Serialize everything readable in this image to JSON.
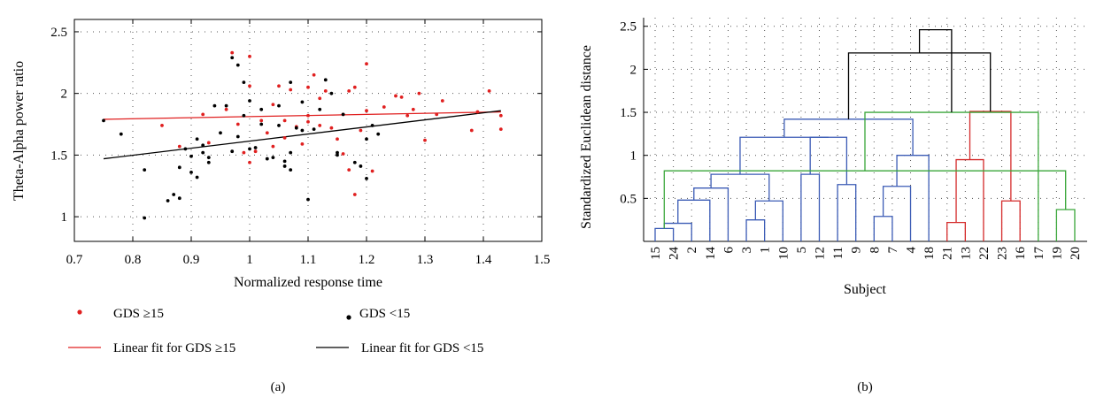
{
  "chart_data": [
    {
      "type": "scatter",
      "panel_label": "(a)",
      "xlabel": "Normalized response time",
      "ylabel": "Theta-Alpha power ratio",
      "xlim": [
        0.7,
        1.5
      ],
      "ylim": [
        0.8,
        2.6
      ],
      "xticks": [
        "0.7",
        "0.8",
        "0.9",
        "1",
        "1.1",
        "1.2",
        "1.3",
        "1.4",
        "1.5"
      ],
      "yticks": [
        "1",
        "1.5",
        "2",
        "2.5"
      ],
      "grid": true,
      "legend_position": "bottom",
      "series": [
        {
          "name": "GDS ≥15",
          "color": "#e02020",
          "points": [
            [
              0.85,
              1.74
            ],
            [
              0.88,
              1.57
            ],
            [
              0.92,
              1.83
            ],
            [
              0.93,
              1.6
            ],
            [
              0.96,
              1.87
            ],
            [
              0.97,
              2.33
            ],
            [
              0.98,
              1.75
            ],
            [
              0.99,
              1.52
            ],
            [
              1.0,
              2.3
            ],
            [
              1.0,
              2.06
            ],
            [
              1.0,
              1.44
            ],
            [
              1.01,
              1.53
            ],
            [
              1.02,
              1.78
            ],
            [
              1.03,
              1.68
            ],
            [
              1.04,
              1.91
            ],
            [
              1.04,
              1.57
            ],
            [
              1.05,
              2.06
            ],
            [
              1.06,
              1.78
            ],
            [
              1.06,
              1.64
            ],
            [
              1.07,
              2.03
            ],
            [
              1.08,
              1.73
            ],
            [
              1.09,
              1.59
            ],
            [
              1.1,
              2.05
            ],
            [
              1.1,
              1.82
            ],
            [
              1.1,
              1.77
            ],
            [
              1.11,
              2.15
            ],
            [
              1.12,
              1.96
            ],
            [
              1.12,
              1.74
            ],
            [
              1.13,
              2.02
            ],
            [
              1.14,
              1.72
            ],
            [
              1.15,
              1.63
            ],
            [
              1.16,
              1.83
            ],
            [
              1.16,
              1.51
            ],
            [
              1.17,
              1.38
            ],
            [
              1.17,
              2.02
            ],
            [
              1.18,
              2.05
            ],
            [
              1.18,
              1.18
            ],
            [
              1.19,
              1.7
            ],
            [
              1.2,
              2.24
            ],
            [
              1.2,
              1.86
            ],
            [
              1.21,
              1.37
            ],
            [
              1.23,
              1.89
            ],
            [
              1.25,
              1.98
            ],
            [
              1.26,
              1.97
            ],
            [
              1.27,
              1.82
            ],
            [
              1.28,
              1.87
            ],
            [
              1.29,
              2.0
            ],
            [
              1.3,
              1.62
            ],
            [
              1.32,
              1.83
            ],
            [
              1.33,
              1.94
            ],
            [
              1.38,
              1.7
            ],
            [
              1.39,
              1.85
            ],
            [
              1.41,
              2.02
            ],
            [
              1.43,
              1.82
            ],
            [
              1.43,
              1.71
            ]
          ]
        },
        {
          "name": "GDS <15",
          "color": "#000000",
          "points": [
            [
              0.75,
              1.78
            ],
            [
              0.78,
              1.67
            ],
            [
              0.82,
              1.38
            ],
            [
              0.82,
              0.99
            ],
            [
              0.86,
              1.13
            ],
            [
              0.87,
              1.18
            ],
            [
              0.88,
              1.4
            ],
            [
              0.88,
              1.15
            ],
            [
              0.89,
              1.55
            ],
            [
              0.9,
              1.36
            ],
            [
              0.9,
              1.49
            ],
            [
              0.91,
              1.32
            ],
            [
              0.91,
              1.63
            ],
            [
              0.92,
              1.52
            ],
            [
              0.92,
              1.58
            ],
            [
              0.93,
              1.44
            ],
            [
              0.93,
              1.48
            ],
            [
              0.94,
              1.9
            ],
            [
              0.95,
              1.68
            ],
            [
              0.96,
              1.9
            ],
            [
              0.97,
              2.29
            ],
            [
              0.97,
              1.53
            ],
            [
              0.98,
              2.23
            ],
            [
              0.98,
              1.65
            ],
            [
              0.99,
              2.09
            ],
            [
              0.99,
              1.82
            ],
            [
              1.0,
              1.55
            ],
            [
              1.0,
              1.94
            ],
            [
              1.01,
              1.56
            ],
            [
              1.02,
              1.87
            ],
            [
              1.02,
              1.75
            ],
            [
              1.03,
              1.47
            ],
            [
              1.04,
              1.48
            ],
            [
              1.05,
              1.74
            ],
            [
              1.05,
              1.9
            ],
            [
              1.06,
              1.41
            ],
            [
              1.06,
              1.45
            ],
            [
              1.07,
              1.38
            ],
            [
              1.07,
              1.52
            ],
            [
              1.07,
              2.09
            ],
            [
              1.08,
              1.72
            ],
            [
              1.09,
              1.7
            ],
            [
              1.09,
              1.93
            ],
            [
              1.1,
              1.14
            ],
            [
              1.11,
              1.71
            ],
            [
              1.12,
              1.87
            ],
            [
              1.13,
              2.11
            ],
            [
              1.14,
              2.0
            ],
            [
              1.15,
              1.5
            ],
            [
              1.15,
              1.52
            ],
            [
              1.16,
              1.83
            ],
            [
              1.18,
              1.44
            ],
            [
              1.19,
              1.41
            ],
            [
              1.2,
              1.31
            ],
            [
              1.2,
              1.63
            ],
            [
              1.21,
              1.74
            ],
            [
              1.22,
              1.67
            ]
          ]
        }
      ],
      "fits": [
        {
          "name": "Linear fit for GDS ≥15",
          "color": "#e02020",
          "x": [
            0.75,
            1.43
          ],
          "y": [
            1.79,
            1.85
          ]
        },
        {
          "name": "Linear fit for GDS <15",
          "color": "#000000",
          "x": [
            0.75,
            1.43
          ],
          "y": [
            1.47,
            1.86
          ]
        }
      ]
    },
    {
      "type": "dendrogram",
      "panel_label": "(b)",
      "xlabel": "Subject",
      "ylabel": "Standardized Euclidean distance",
      "ylim": [
        0,
        2.6
      ],
      "yticks": [
        "0.5",
        "1",
        "1.5",
        "2",
        "2.5"
      ],
      "grid": true,
      "leaves": [
        "15",
        "24",
        "2",
        "14",
        "6",
        "3",
        "1",
        "10",
        "5",
        "12",
        "11",
        "9",
        "8",
        "7",
        "4",
        "18",
        "21",
        "13",
        "22",
        "23",
        "16",
        "17",
        "19",
        "20"
      ],
      "cluster_colors": {
        "blue": "#3b5bb5",
        "red": "#d42a2a",
        "green": "#3aa63a",
        "black": "#000000"
      },
      "links": [
        {
          "a": 0,
          "b": 1,
          "h": 0.15,
          "color": "blue"
        },
        {
          "a": 24,
          "b": 2,
          "h": 0.21,
          "color": "blue"
        },
        {
          "a": 25,
          "b": 3,
          "h": 0.48,
          "color": "blue"
        },
        {
          "a": 26,
          "b": 4,
          "h": 0.62,
          "color": "blue"
        },
        {
          "a": 5,
          "b": 6,
          "h": 0.25,
          "color": "blue"
        },
        {
          "a": 28,
          "b": 7,
          "h": 0.47,
          "color": "blue"
        },
        {
          "a": 27,
          "b": 29,
          "h": 0.78,
          "color": "blue"
        },
        {
          "a": 8,
          "b": 9,
          "h": 0.78,
          "color": "blue"
        },
        {
          "a": 10,
          "b": 11,
          "h": 0.66,
          "color": "blue"
        },
        {
          "a": 31,
          "b": 32,
          "h": 1.21,
          "color": "blue"
        },
        {
          "a": 30,
          "b": 33,
          "h": 1.21,
          "color": "blue"
        },
        {
          "a": 12,
          "b": 13,
          "h": 0.29,
          "color": "blue"
        },
        {
          "a": 35,
          "b": 14,
          "h": 0.64,
          "color": "blue"
        },
        {
          "a": 36,
          "b": 15,
          "h": 1.0,
          "color": "blue"
        },
        {
          "a": 34,
          "b": 37,
          "h": 1.42,
          "color": "blue"
        },
        {
          "a": 16,
          "b": 17,
          "h": 0.22,
          "color": "red"
        },
        {
          "a": 39,
          "b": 18,
          "h": 0.95,
          "color": "red"
        },
        {
          "a": 19,
          "b": 20,
          "h": 0.47,
          "color": "red"
        },
        {
          "a": 40,
          "b": 41,
          "h": 1.51,
          "color": "red"
        },
        {
          "a": 22,
          "b": 23,
          "h": 0.37,
          "color": "green"
        },
        {
          "a": 43,
          "b": 24,
          "h": 0.82,
          "color": "green"
        },
        {
          "a": 21,
          "b": 44,
          "h": 1.5,
          "color": "green"
        },
        {
          "a": 38,
          "b": 42,
          "h": 2.19,
          "color": "black"
        },
        {
          "a": 46,
          "b": 45,
          "h": 2.46,
          "color": "black"
        }
      ]
    }
  ]
}
